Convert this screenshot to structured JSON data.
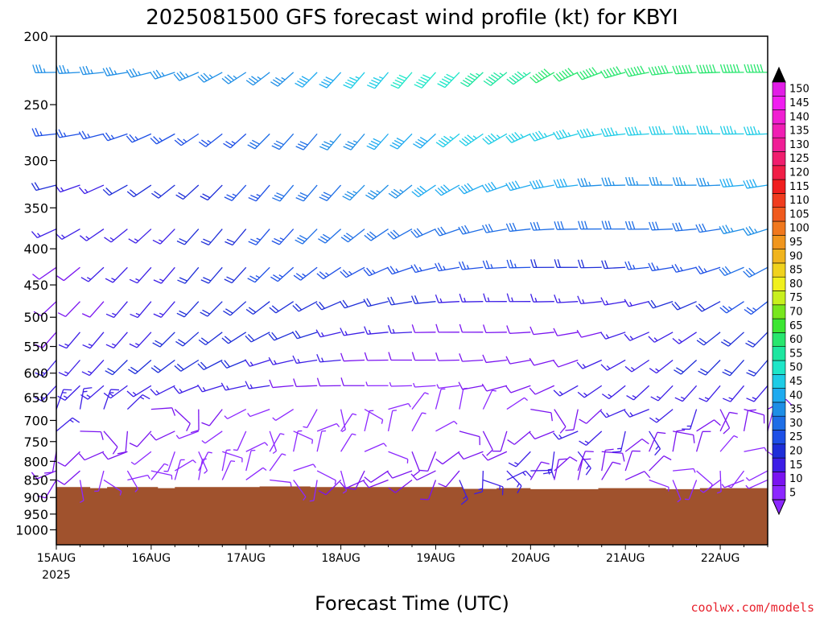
{
  "chart_data": {
    "type": "wind_barb_profile",
    "title": "2025081500 GFS forecast wind profile (kt) for KBYI",
    "xlabel": "Forecast Time (UTC)",
    "credit": "coolwx.com/models",
    "x_ticks": [
      "15AUG",
      "16AUG",
      "17AUG",
      "18AUG",
      "19AUG",
      "20AUG",
      "21AUG",
      "22AUG"
    ],
    "x_tick_hours": [
      0,
      24,
      48,
      72,
      96,
      120,
      144,
      168
    ],
    "x_first_year": "2025",
    "x_range_hours": [
      0,
      180
    ],
    "x_step_hours": 6,
    "y_ticks": [
      200,
      250,
      300,
      350,
      400,
      450,
      500,
      550,
      600,
      650,
      700,
      750,
      800,
      850,
      900,
      950,
      1000
    ],
    "y_range": [
      200,
      1050
    ],
    "y_scale": "log",
    "y_reversed": true,
    "levels": [
      225,
      275,
      325,
      375,
      425,
      475,
      525,
      575,
      625,
      675,
      725,
      775,
      825,
      850
    ],
    "terrain_color": "#a0522d",
    "terrain_pressure": [
      870,
      870,
      873,
      870,
      870,
      870,
      873,
      870,
      870,
      870,
      870,
      870,
      868,
      868,
      868,
      870,
      870,
      870,
      870,
      870,
      870,
      870,
      870,
      870,
      875,
      875,
      873,
      873,
      876,
      876,
      876,
      876,
      873,
      873,
      873,
      873,
      876,
      876,
      873,
      873,
      873,
      873
    ],
    "colorbar": {
      "labels": [
        "5",
        "10",
        "15",
        "20",
        "25",
        "30",
        "35",
        "40",
        "45",
        "50",
        "55",
        "60",
        "65",
        "70",
        "75",
        "80",
        "85",
        "90",
        "95",
        "100",
        "105",
        "110",
        "115",
        "120",
        "125",
        "130",
        "135",
        "140",
        "145",
        "150"
      ],
      "colors": [
        "#8c28ff",
        "#7a14f0",
        "#3c1ee6",
        "#1e2ed8",
        "#1e50e6",
        "#1e6ee6",
        "#1e8ee6",
        "#1eaaf0",
        "#1ecce6",
        "#1ee6c8",
        "#1ee6a0",
        "#28e66e",
        "#3ce632",
        "#78e61e",
        "#c8f01e",
        "#f0f01e",
        "#f0d21e",
        "#f0b41e",
        "#f0961e",
        "#f0781e",
        "#f05a1e",
        "#f03c1e",
        "#f01e1e",
        "#f01e46",
        "#f01e6e",
        "#f01e96",
        "#f01eb4",
        "#f01ed2",
        "#f01ef0",
        "#e11ee6"
      ],
      "top_arrow_color": "#000000",
      "bottom_arrow_color": "#8c28ff"
    }
  }
}
